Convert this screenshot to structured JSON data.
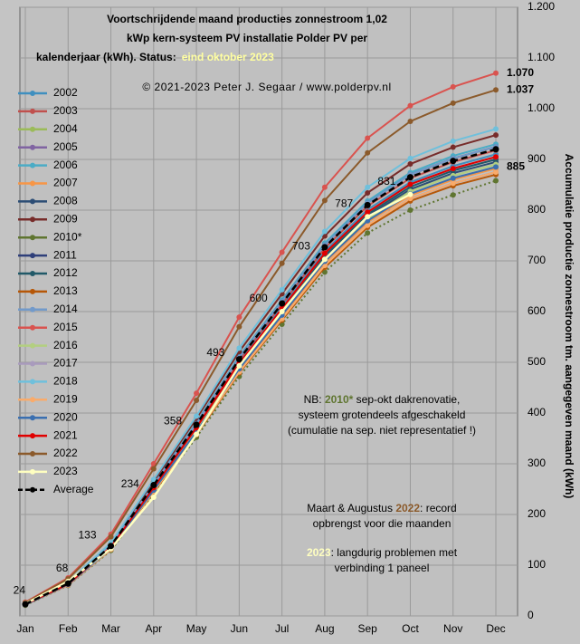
{
  "chart_data": {
    "type": "line",
    "title": [
      "Voortschrijdende maand producties zonnestroom 1,02",
      "kWp kern-systeem PV installatie Polder PV per",
      "kalenderjaar (kWh). Status:"
    ],
    "title_highlight": "eind oktober 2023",
    "subtitle": "© 2021-2023 Peter J. Segaar / www.polderpv.nl",
    "y_label": "Accumulatie productie zonnestroom tm. aangegeven maand (kWh)",
    "categories": [
      "Jan",
      "Feb",
      "Mar",
      "Apr",
      "May",
      "Jun",
      "Jul",
      "Aug",
      "Sep",
      "Oct",
      "Nov",
      "Dec"
    ],
    "ylim": [
      0,
      1200
    ],
    "yticks": [
      0,
      100,
      200,
      300,
      400,
      500,
      600,
      700,
      800,
      900,
      {
        "value": 1000,
        "label": "1.000"
      },
      {
        "value": 1100,
        "label": "1.100"
      },
      {
        "value": 1200,
        "label": "1.200"
      }
    ],
    "grid": true,
    "legend": "left",
    "series": [
      {
        "name": "2002",
        "color": "#3f8fbf",
        "values": [
          23,
          64,
          137,
          255,
          373,
          501,
          610,
          719,
          801,
          855,
          887,
          910
        ]
      },
      {
        "name": "2003",
        "color": "#c0504d",
        "values": [
          23,
          64,
          138,
          257,
          376,
          505,
          615,
          725,
          808,
          863,
          895,
          918
        ]
      },
      {
        "name": "2004",
        "color": "#9bbb59",
        "values": [
          22,
          62,
          134,
          249,
          365,
          490,
          596,
          703,
          783,
          837,
          868,
          890
        ]
      },
      {
        "name": "2005",
        "color": "#8064a2",
        "values": [
          22,
          61,
          131,
          245,
          359,
          481,
          586,
          691,
          770,
          823,
          853,
          875
        ]
      },
      {
        "name": "2006",
        "color": "#4bacc6",
        "values": [
          23,
          65,
          140,
          260,
          381,
          512,
          623,
          735,
          818,
          874,
          907,
          930
        ]
      },
      {
        "name": "2007",
        "color": "#f79646",
        "values": [
          22,
          62,
          132,
          247,
          362,
          485,
          591,
          697,
          776,
          829,
          860,
          882
        ]
      },
      {
        "name": "2008",
        "color": "#2c4d75",
        "values": [
          22,
          63,
          134,
          251,
          367,
          492,
          600,
          707,
          788,
          841,
          873,
          895
        ]
      },
      {
        "name": "2009",
        "color": "#772c2a",
        "values": [
          24,
          66,
          142,
          265,
          389,
          521,
          635,
          749,
          834,
          891,
          924,
          948
        ]
      },
      {
        "name": "2010*",
        "color": "#5f7530",
        "dotted": true,
        "values": [
          21,
          60,
          129,
          240,
          352,
          472,
          575,
          678,
          755,
          800,
          830,
          858
        ]
      },
      {
        "name": "2011",
        "color": "#2f3f7a",
        "values": [
          23,
          65,
          139,
          259,
          379,
          509,
          620,
          731,
          814,
          870,
          902,
          925
        ]
      },
      {
        "name": "2012",
        "color": "#215968",
        "values": [
          23,
          63,
          135,
          252,
          369,
          495,
          603,
          711,
          792,
          846,
          878,
          900
        ]
      },
      {
        "name": "2013",
        "color": "#b65708",
        "values": [
          22,
          61,
          131,
          244,
          357,
          479,
          583,
          687,
          766,
          818,
          848,
          870
        ]
      },
      {
        "name": "2014",
        "color": "#729aca",
        "values": [
          23,
          65,
          139,
          259,
          379,
          509,
          620,
          731,
          814,
          870,
          902,
          925
        ]
      },
      {
        "name": "2015",
        "color": "#d9534f",
        "values": [
          27,
          75,
          161,
          300,
          439,
          589,
          717,
          845,
          942,
          1006,
          1043,
          1070
        ],
        "value_labels": [
          null,
          null,
          null,
          null,
          null,
          null,
          null,
          null,
          null,
          null,
          null,
          "1.070"
        ]
      },
      {
        "name": "2016",
        "color": "#b3cf80",
        "values": [
          22,
          62,
          134,
          249,
          365,
          490,
          596,
          703,
          783,
          837,
          868,
          890
        ]
      },
      {
        "name": "2017",
        "color": "#a99bbd",
        "values": [
          23,
          63,
          136,
          253,
          371,
          498,
          606,
          715,
          796,
          851,
          882,
          905
        ]
      },
      {
        "name": "2018",
        "color": "#6fc0dc",
        "values": [
          24,
          67,
          144,
          269,
          394,
          528,
          643,
          758,
          845,
          902,
          936,
          960
        ]
      },
      {
        "name": "2019",
        "color": "#f9ab6b",
        "values": [
          22,
          61,
          131,
          245,
          359,
          481,
          586,
          691,
          770,
          823,
          853,
          875
        ]
      },
      {
        "name": "2020",
        "color": "#3a6fb0",
        "values": [
          22,
          62,
          133,
          248,
          363,
          487,
          593,
          699,
          779,
          832,
          863,
          885
        ],
        "value_labels": [
          null,
          null,
          null,
          null,
          null,
          null,
          null,
          null,
          null,
          null,
          null,
          "885"
        ]
      },
      {
        "name": "2021",
        "color": "#e00000",
        "values": [
          23,
          63,
          136,
          253,
          371,
          498,
          606,
          715,
          796,
          851,
          882,
          905
        ]
      },
      {
        "name": "2022",
        "color": "#8b5a2b",
        "values": [
          26,
          73,
          156,
          290,
          425,
          570,
          695,
          819,
          913,
          975,
          1011,
          1037
        ],
        "value_labels": [
          null,
          null,
          null,
          null,
          null,
          null,
          null,
          null,
          null,
          null,
          null,
          "1.037"
        ]
      },
      {
        "name": "2023",
        "color": "#ffffc0",
        "labelled": true,
        "values": [
          24,
          68,
          133,
          234,
          358,
          493,
          600,
          703,
          787,
          831,
          null,
          null
        ]
      },
      {
        "name": "Average",
        "color": "#000000",
        "dashed": true,
        "values": [
          23,
          64,
          138,
          258,
          377,
          506,
          616,
          727,
          810,
          865,
          897,
          920
        ]
      }
    ],
    "notes": [
      [
        {
          "text": "NB: "
        },
        {
          "text": "2010*",
          "color": "#5f7530"
        },
        {
          "text": " sep-okt dakrenovatie,"
        }
      ],
      [
        {
          "text": "systeem grotendeels afgeschakeld"
        }
      ],
      [
        {
          "text": "(cumulatie na sep. niet representatief !)"
        }
      ],
      [
        {
          "text": "Maart & Augustus "
        },
        {
          "text": "2022",
          "color": "#8b5a2b"
        },
        {
          "text": ": record"
        }
      ],
      [
        {
          "text": "opbrengst voor die maanden"
        }
      ],
      [
        {
          "text": "2023",
          "color": "#ffffc0"
        },
        {
          "text": ": langdurig problemen met"
        }
      ],
      [
        {
          "text": "verbinding 1 paneel"
        }
      ]
    ]
  }
}
